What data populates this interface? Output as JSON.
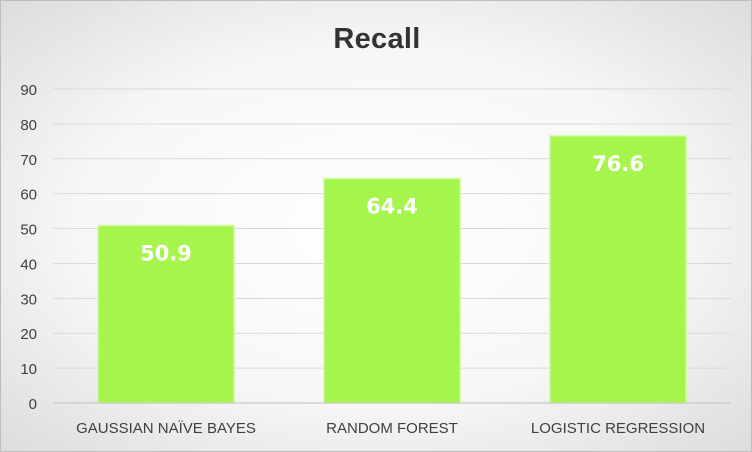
{
  "chart_data": {
    "type": "bar",
    "title": "Recall",
    "categories": [
      "GAUSSIAN NAÏVE BAYES",
      "RANDOM FOREST",
      "LOGISTIC REGRESSION"
    ],
    "values": [
      50.9,
      64.4,
      76.6
    ],
    "data_labels": [
      "50.9",
      "64.4",
      "76.6"
    ],
    "xlabel": "",
    "ylabel": "",
    "ylim": [
      0,
      90
    ],
    "y_ticks": [
      "0",
      "10",
      "20",
      "30",
      "40",
      "50",
      "60",
      "70",
      "80",
      "90"
    ],
    "grid": true,
    "legend": "none",
    "colors": {
      "bar_fill": "#a6f54c",
      "bar_edge": "#d8fbb0",
      "data_label": "#ffffff",
      "axis_text": "#404040",
      "gridline": "#d9d9d9",
      "axis_line": "#bfbfbf",
      "title": "#333333"
    }
  }
}
